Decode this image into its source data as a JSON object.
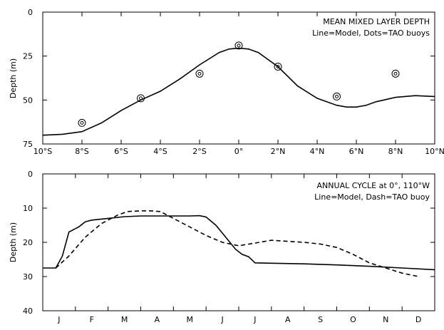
{
  "chart_data": [
    {
      "type": "line",
      "title": "MEAN MIXED LAYER DEPTH",
      "subtitle": "Line=Model, Dots=TAO buoys",
      "ylabel": "Depth (m)",
      "xlabel": "",
      "xlim": [
        -10,
        10
      ],
      "ylim": [
        0,
        75
      ],
      "y_inverted": true,
      "xticks": [
        -10,
        -8,
        -6,
        -4,
        -2,
        0,
        2,
        4,
        6,
        8,
        10
      ],
      "xtick_labels": [
        "10°S",
        "8°S",
        "6°S",
        "4°S",
        "2°S",
        "0°",
        "2°N",
        "4°N",
        "6°N",
        "8°N",
        "10°N"
      ],
      "yticks": [
        0,
        25,
        50,
        75
      ],
      "ytick_labels": [
        "0",
        "25",
        "50",
        "75"
      ],
      "series": [
        {
          "name": "Model",
          "style": "solid",
          "x": [
            -10,
            -9,
            -8,
            -7,
            -6,
            -5,
            -4,
            -3,
            -2,
            -1,
            -0.5,
            0,
            0.5,
            1,
            2,
            3,
            4,
            5,
            5.5,
            6,
            6.5,
            7,
            8,
            9,
            10
          ],
          "y": [
            70,
            69.5,
            68,
            63,
            56,
            50,
            45,
            38,
            30,
            23,
            21,
            20.5,
            21,
            23,
            31,
            42,
            49,
            53,
            54,
            54,
            53,
            51,
            48.5,
            47.5,
            48
          ]
        },
        {
          "name": "TAO buoys",
          "style": "points",
          "x": [
            -8,
            -5,
            -2,
            0,
            2,
            5,
            8
          ],
          "y": [
            63,
            49,
            35,
            19,
            31,
            48,
            35
          ]
        }
      ]
    },
    {
      "type": "line",
      "title": "ANNUAL CYCLE at 0°, 110°W",
      "subtitle": "Line=Model, Dash=TAO buoy",
      "ylabel": "Depth (m)",
      "xlabel": "",
      "xlim": [
        0,
        12
      ],
      "ylim": [
        0,
        40
      ],
      "y_inverted": true,
      "categories": [
        "J",
        "F",
        "M",
        "A",
        "M",
        "J",
        "J",
        "A",
        "S",
        "O",
        "N",
        "D"
      ],
      "yticks": [
        0,
        10,
        20,
        30,
        40
      ],
      "ytick_labels": [
        "0",
        "10",
        "20",
        "30",
        "40"
      ],
      "series": [
        {
          "name": "Model",
          "style": "solid",
          "x": [
            0,
            0.4,
            0.6,
            0.8,
            1.0,
            1.1,
            1.3,
            1.5,
            2.0,
            2.5,
            3.0,
            3.5,
            4.0,
            4.5,
            4.8,
            5.0,
            5.3,
            5.6,
            5.9,
            6.1,
            6.3,
            6.5,
            7,
            8,
            9,
            10,
            11,
            12
          ],
          "y": [
            27.5,
            27.5,
            24,
            17,
            16,
            15.5,
            14,
            13.5,
            13,
            12.5,
            12.3,
            12.3,
            12.3,
            12.3,
            12.2,
            12.6,
            15,
            18.5,
            22,
            23.5,
            24.2,
            26,
            26.1,
            26.3,
            26.6,
            27,
            27.5,
            28
          ]
        },
        {
          "name": "TAO buoy",
          "style": "dashed",
          "x": [
            0.4,
            0.8,
            1.3,
            1.8,
            2.3,
            2.6,
            3.0,
            3.3,
            3.6,
            4.0,
            4.5,
            5.0,
            5.5,
            6.0,
            6.5,
            7.0,
            8.0,
            8.5,
            9.0,
            9.5,
            10.0,
            10.5,
            11.0,
            11.5
          ],
          "y": [
            27.5,
            24,
            18.5,
            14.5,
            12,
            11,
            10.8,
            10.8,
            11,
            13,
            15.5,
            18,
            20,
            21,
            20.2,
            19.4,
            20,
            20.5,
            21.5,
            23.5,
            26,
            27.5,
            29,
            30
          ]
        }
      ]
    }
  ]
}
